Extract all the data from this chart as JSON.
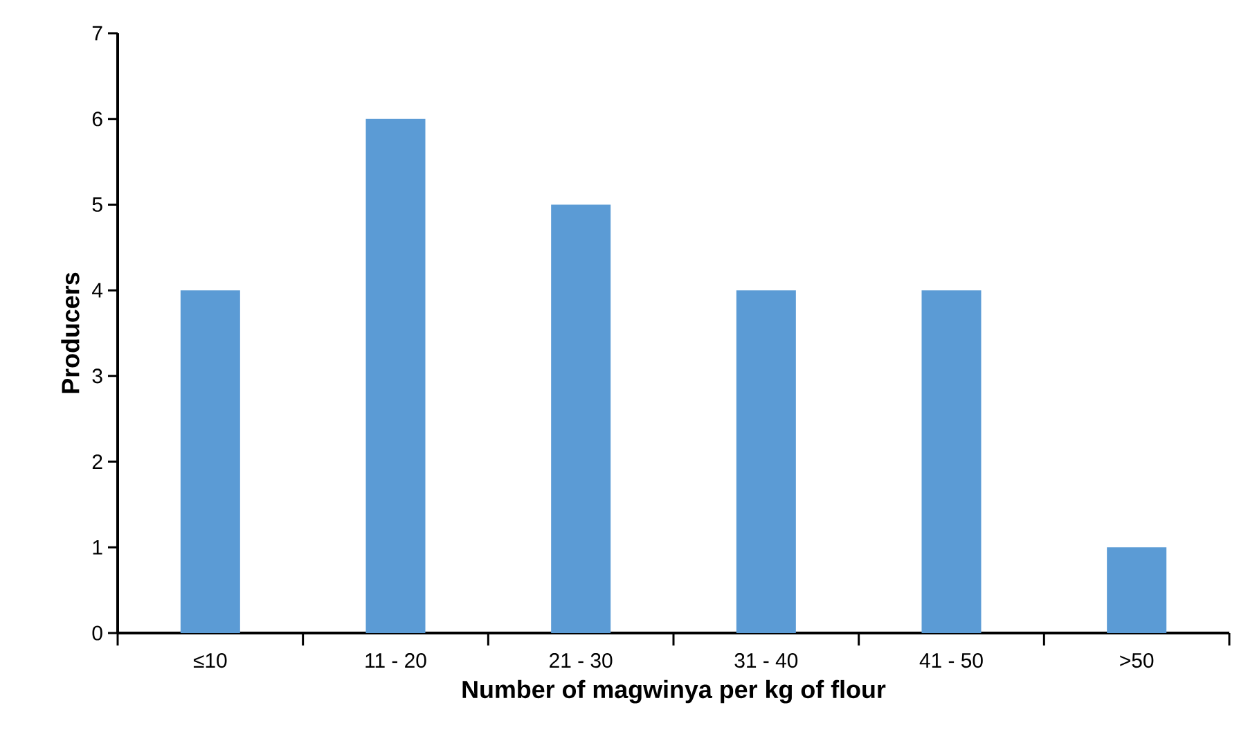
{
  "chart_data": {
    "type": "bar",
    "xlabel": "Number of magwinya per kg of flour",
    "ylabel": "Producers",
    "categories": [
      "≤10",
      "11 - 20",
      "21 - 30",
      "31 - 40",
      "41 - 50",
      ">50"
    ],
    "values": [
      4,
      6,
      5,
      4,
      4,
      1
    ],
    "color": "#5b9bd5",
    "ylim": [
      0,
      7
    ],
    "yticks": [
      0,
      1,
      2,
      3,
      4,
      5,
      6,
      7
    ],
    "grid": false
  }
}
